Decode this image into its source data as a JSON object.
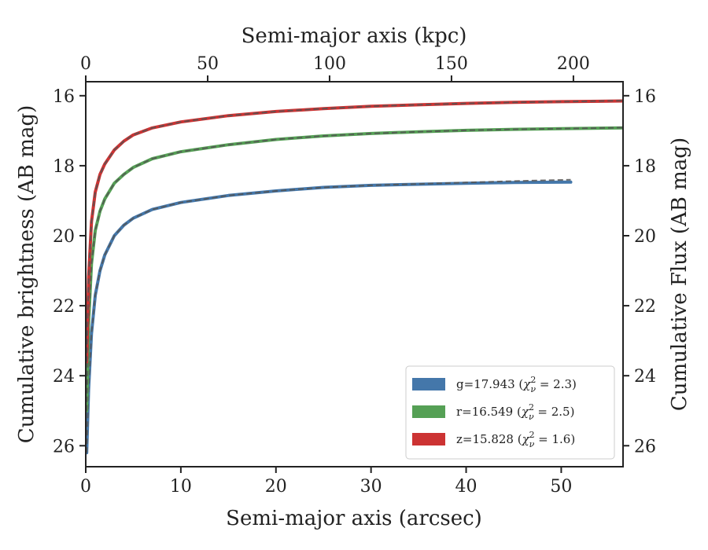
{
  "chart_data": {
    "type": "line",
    "title": "",
    "xlabel": "Semi-major axis (arcsec)",
    "x2label": "Semi-major axis (kpc)",
    "ylabel": "Cumulative brightness (AB mag)",
    "y2label": "Cumulative Flux (AB mag)",
    "xlim": [
      0,
      56.5
    ],
    "ylim": [
      26.6,
      15.6
    ],
    "y_inverted": true,
    "x_ticks": [
      0,
      10,
      20,
      30,
      40,
      50
    ],
    "y_ticks": [
      16,
      18,
      20,
      22,
      24,
      26
    ],
    "x2_ticks": [
      0,
      50,
      100,
      150,
      200
    ],
    "x2_per_x": 3.9,
    "grid": false,
    "legend_position": "lower-right",
    "model_style": "dashed gray",
    "series": [
      {
        "name": "g=17.943 (χ²_ν = 2.3)",
        "label_main": "g=17.943 (",
        "label_math": "χ",
        "label_sup": "2",
        "label_sub": "ν",
        "label_tail": " = 2.3)",
        "color": "#4477aa",
        "x": [
          0.1,
          0.3,
          0.6,
          1.0,
          1.5,
          2.0,
          3.0,
          4.0,
          5.0,
          7.0,
          10.0,
          15.0,
          20.0,
          25.0,
          30.0,
          35.0,
          40.0,
          45.0,
          51.0
        ],
        "y": [
          26.2,
          24.4,
          22.8,
          21.7,
          21.0,
          20.55,
          20.0,
          19.7,
          19.5,
          19.25,
          19.05,
          18.85,
          18.72,
          18.62,
          18.56,
          18.53,
          18.5,
          18.48,
          18.47
        ],
        "model_y": [
          26.2,
          24.4,
          22.8,
          21.7,
          21.0,
          20.55,
          20.0,
          19.7,
          19.5,
          19.25,
          19.05,
          18.85,
          18.72,
          18.62,
          18.56,
          18.52,
          18.48,
          18.44,
          18.4
        ]
      },
      {
        "name": "r=16.549 (χ²_ν = 2.5)",
        "label_main": "r=16.549 (",
        "label_math": "χ",
        "label_sup": "2",
        "label_sub": "ν",
        "label_tail": " = 2.5)",
        "color": "#55a055",
        "x": [
          0.1,
          0.3,
          0.6,
          1.0,
          1.5,
          2.0,
          3.0,
          4.0,
          5.0,
          7.0,
          10.0,
          15.0,
          20.0,
          25.0,
          30.0,
          35.0,
          40.0,
          45.0,
          50.0,
          56.5
        ],
        "y": [
          25.0,
          22.5,
          20.8,
          19.85,
          19.3,
          18.95,
          18.5,
          18.25,
          18.05,
          17.8,
          17.6,
          17.4,
          17.25,
          17.15,
          17.08,
          17.03,
          16.99,
          16.96,
          16.94,
          16.92
        ],
        "model_y": [
          25.0,
          22.5,
          20.8,
          19.85,
          19.3,
          18.95,
          18.5,
          18.25,
          18.05,
          17.8,
          17.6,
          17.4,
          17.25,
          17.15,
          17.08,
          17.03,
          16.99,
          16.96,
          16.94,
          16.91
        ]
      },
      {
        "name": "z=15.828 (χ²_ν = 1.6)",
        "label_main": "z=15.828 (",
        "label_math": "χ",
        "label_sup": "2",
        "label_sub": "ν",
        "label_tail": " = 1.6)",
        "color": "#cc3333",
        "x": [
          0.1,
          0.3,
          0.6,
          1.0,
          1.5,
          2.0,
          3.0,
          4.0,
          5.0,
          7.0,
          10.0,
          15.0,
          20.0,
          25.0,
          30.0,
          35.0,
          40.0,
          45.0,
          50.0,
          56.5
        ],
        "y": [
          23.6,
          21.2,
          19.6,
          18.75,
          18.25,
          17.95,
          17.55,
          17.3,
          17.12,
          16.92,
          16.75,
          16.57,
          16.45,
          16.37,
          16.3,
          16.26,
          16.22,
          16.19,
          16.17,
          16.15
        ],
        "model_y": [
          23.6,
          21.2,
          19.6,
          18.75,
          18.25,
          17.95,
          17.55,
          17.3,
          17.12,
          16.92,
          16.75,
          16.57,
          16.45,
          16.37,
          16.3,
          16.26,
          16.22,
          16.19,
          16.17,
          16.14
        ]
      }
    ]
  }
}
